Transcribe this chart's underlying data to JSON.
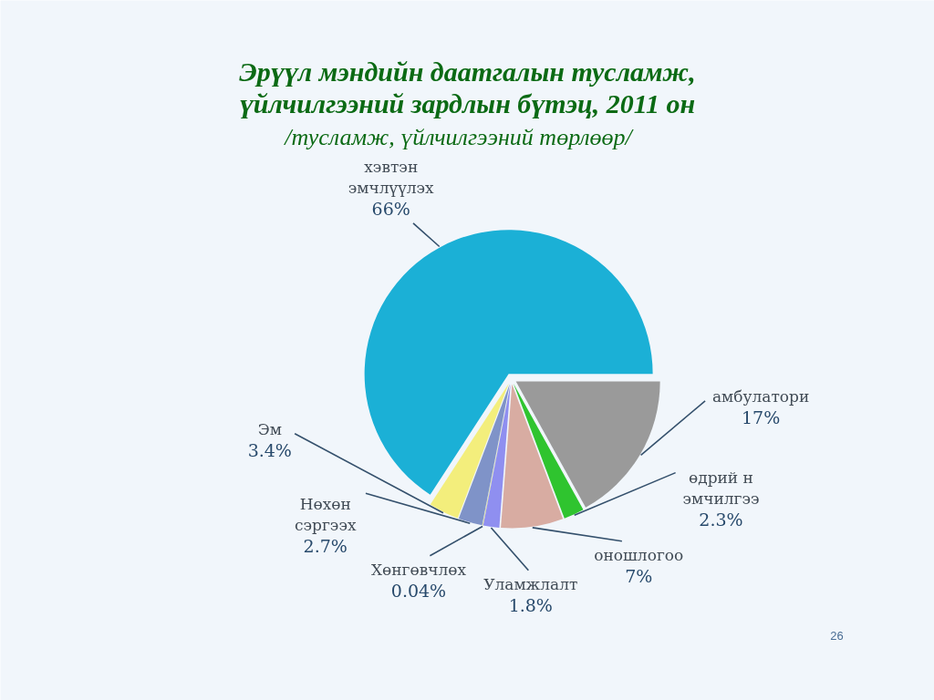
{
  "chart_data": {
    "type": "pie",
    "title": "Эрүүл мэндийн даатгалын тусламж,\nүйлчилгээний зардлын бүтэц, 2011 он",
    "subtitle": "/тусламж, үйлчилгээний төрлөөр/",
    "categories": [
      "амбулатори",
      "өдрий н\nэмчилгээ",
      "оношлогоо",
      "Уламжлалт",
      "Хөнгөвчлөх",
      "Нөхөн\nсэргээх",
      "Эм",
      "хэвтэн\nэмчлүүлэх"
    ],
    "values": [
      17,
      2.3,
      7,
      1.8,
      0.04,
      2.7,
      3.4,
      66
    ],
    "value_labels": [
      "17%",
      "2.3%",
      "7%",
      "1.8%",
      "0.04%",
      "2.7%",
      "3.4%",
      "66%"
    ],
    "colors": [
      "#9a9a9a",
      "#2fc42f",
      "#d8aca2",
      "#8f8ff0",
      "#b9b935",
      "#7f93c8",
      "#f3ee7c",
      "#1bb0d6"
    ],
    "annotations": [
      "26"
    ]
  }
}
